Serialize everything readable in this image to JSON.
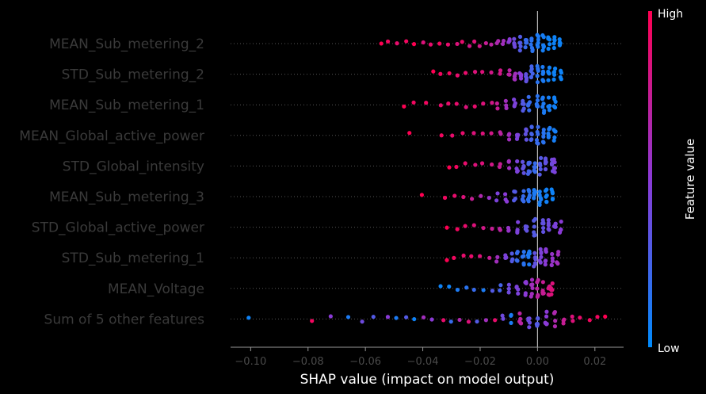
{
  "chart_data": {
    "type": "scatter",
    "subtype": "shap-beeswarm",
    "title": "",
    "xlabel": "SHAP value (impact on model output)",
    "xlim": [
      -0.107,
      0.03
    ],
    "xticks": [
      -0.1,
      -0.08,
      -0.06,
      -0.04,
      -0.02,
      0.0,
      0.02
    ],
    "xtick_labels": [
      "−0.10",
      "−0.08",
      "−0.06",
      "−0.04",
      "−0.02",
      "0.00",
      "0.02"
    ],
    "zero_line": 0.0,
    "grid": false,
    "colorbar": {
      "title": "Feature value",
      "high_label": "High",
      "low_label": "Low",
      "high_color": "#ff0052",
      "low_color": "#008bfb"
    },
    "features": [
      {
        "name": "MEAN_Sub_metering_2",
        "points": [
          [
            -0.0545,
            1.0
          ],
          [
            -0.052,
            0.95
          ],
          [
            -0.049,
            0.9
          ],
          [
            -0.046,
            0.95
          ],
          [
            -0.043,
            1.0
          ],
          [
            -0.04,
            0.85
          ],
          [
            -0.037,
            0.9
          ],
          [
            -0.034,
            0.95
          ],
          [
            -0.031,
            0.9
          ],
          [
            -0.028,
            0.85
          ],
          [
            -0.026,
            0.9
          ],
          [
            -0.024,
            0.8
          ],
          [
            -0.022,
            0.85
          ],
          [
            -0.02,
            0.8
          ],
          [
            -0.018,
            0.75
          ],
          [
            -0.016,
            0.7
          ],
          [
            -0.014,
            0.65
          ],
          [
            -0.012,
            0.6
          ],
          [
            -0.01,
            0.5
          ],
          [
            -0.008,
            0.4
          ],
          [
            -0.006,
            0.3
          ],
          [
            -0.004,
            0.2
          ],
          [
            -0.002,
            0.15
          ],
          [
            0.0,
            0.1
          ],
          [
            0.002,
            0.08
          ],
          [
            0.004,
            0.05
          ],
          [
            0.006,
            0.05
          ],
          [
            0.008,
            0.05
          ]
        ]
      },
      {
        "name": "STD_Sub_metering_2",
        "points": [
          [
            -0.0365,
            1.0
          ],
          [
            -0.034,
            0.95
          ],
          [
            -0.031,
            0.95
          ],
          [
            -0.028,
            0.9
          ],
          [
            -0.025,
            0.9
          ],
          [
            -0.022,
            0.85
          ],
          [
            -0.019,
            0.85
          ],
          [
            -0.016,
            0.8
          ],
          [
            -0.013,
            0.8
          ],
          [
            -0.01,
            0.7
          ],
          [
            -0.008,
            0.6
          ],
          [
            -0.006,
            0.5
          ],
          [
            -0.004,
            0.35
          ],
          [
            -0.002,
            0.25
          ],
          [
            0.0,
            0.15
          ],
          [
            0.002,
            0.1
          ],
          [
            0.004,
            0.06
          ],
          [
            0.006,
            0.05
          ],
          [
            0.008,
            0.05
          ]
        ]
      },
      {
        "name": "MEAN_Sub_metering_1",
        "points": [
          [
            -0.0465,
            1.0
          ],
          [
            -0.043,
            0.95
          ],
          [
            -0.039,
            0.95
          ],
          [
            -0.034,
            0.9
          ],
          [
            -0.031,
            0.9
          ],
          [
            -0.028,
            0.9
          ],
          [
            -0.025,
            0.85
          ],
          [
            -0.022,
            0.9
          ],
          [
            -0.019,
            0.85
          ],
          [
            -0.016,
            0.8
          ],
          [
            -0.014,
            0.75
          ],
          [
            -0.011,
            0.6
          ],
          [
            -0.008,
            0.45
          ],
          [
            -0.005,
            0.3
          ],
          [
            -0.003,
            0.2
          ],
          [
            0.0,
            0.15
          ],
          [
            0.002,
            0.1
          ],
          [
            0.004,
            0.08
          ],
          [
            0.006,
            0.06
          ]
        ]
      },
      {
        "name": "MEAN_Global_active_power",
        "points": [
          [
            -0.0445,
            1.0
          ],
          [
            -0.0335,
            0.95
          ],
          [
            -0.03,
            0.9
          ],
          [
            -0.026,
            0.9
          ],
          [
            -0.022,
            0.85
          ],
          [
            -0.019,
            0.85
          ],
          [
            -0.016,
            0.8
          ],
          [
            -0.013,
            0.7
          ],
          [
            -0.01,
            0.6
          ],
          [
            -0.007,
            0.45
          ],
          [
            -0.004,
            0.35
          ],
          [
            -0.002,
            0.25
          ],
          [
            0.0,
            0.2
          ],
          [
            0.002,
            0.15
          ],
          [
            0.004,
            0.1
          ],
          [
            0.006,
            0.08
          ]
        ]
      },
      {
        "name": "STD_Global_intensity",
        "points": [
          [
            -0.031,
            1.0
          ],
          [
            -0.028,
            0.95
          ],
          [
            -0.025,
            0.9
          ],
          [
            -0.022,
            0.85
          ],
          [
            -0.019,
            0.85
          ],
          [
            -0.016,
            0.8
          ],
          [
            -0.013,
            0.75
          ],
          [
            -0.01,
            0.6
          ],
          [
            -0.007,
            0.45
          ],
          [
            -0.005,
            0.35
          ],
          [
            -0.003,
            0.25
          ],
          [
            -0.001,
            0.2
          ],
          [
            0.001,
            0.3
          ],
          [
            0.003,
            0.35
          ],
          [
            0.005,
            0.4
          ],
          [
            0.006,
            0.45
          ]
        ]
      },
      {
        "name": "MEAN_Sub_metering_3",
        "points": [
          [
            -0.0405,
            1.0
          ],
          [
            -0.0325,
            0.95
          ],
          [
            -0.029,
            0.9
          ],
          [
            -0.026,
            0.85
          ],
          [
            -0.023,
            0.75
          ],
          [
            -0.02,
            0.65
          ],
          [
            -0.017,
            0.55
          ],
          [
            -0.014,
            0.45
          ],
          [
            -0.011,
            0.5
          ],
          [
            -0.008,
            0.3
          ],
          [
            -0.005,
            0.2
          ],
          [
            -0.003,
            0.15
          ],
          [
            -0.001,
            0.1
          ],
          [
            0.001,
            0.08
          ],
          [
            0.003,
            0.06
          ],
          [
            0.005,
            0.05
          ]
        ]
      },
      {
        "name": "STD_Global_active_power",
        "points": [
          [
            -0.0315,
            1.0
          ],
          [
            -0.028,
            0.95
          ],
          [
            -0.025,
            0.9
          ],
          [
            -0.022,
            0.85
          ],
          [
            -0.019,
            0.8
          ],
          [
            -0.016,
            0.75
          ],
          [
            -0.013,
            0.7
          ],
          [
            -0.01,
            0.55
          ],
          [
            -0.007,
            0.45
          ],
          [
            -0.004,
            0.35
          ],
          [
            -0.001,
            0.3
          ],
          [
            0.002,
            0.35
          ],
          [
            0.004,
            0.4
          ],
          [
            0.006,
            0.45
          ],
          [
            0.008,
            0.5
          ]
        ]
      },
      {
        "name": "STD_Sub_metering_1",
        "points": [
          [
            -0.0315,
            1.0
          ],
          [
            -0.029,
            0.95
          ],
          [
            -0.026,
            0.9
          ],
          [
            -0.023,
            0.9
          ],
          [
            -0.02,
            0.85
          ],
          [
            -0.017,
            0.75
          ],
          [
            -0.014,
            0.6
          ],
          [
            -0.011,
            0.45
          ],
          [
            -0.009,
            0.3
          ],
          [
            -0.007,
            0.2
          ],
          [
            -0.005,
            0.15
          ],
          [
            -0.003,
            0.1
          ],
          [
            -0.001,
            0.35
          ],
          [
            0.001,
            0.45
          ],
          [
            0.003,
            0.5
          ],
          [
            0.005,
            0.55
          ],
          [
            0.007,
            0.6
          ]
        ]
      },
      {
        "name": "MEAN_Voltage",
        "points": [
          [
            -0.0335,
            0.05
          ],
          [
            -0.031,
            0.05
          ],
          [
            -0.028,
            0.1
          ],
          [
            -0.025,
            0.15
          ],
          [
            -0.022,
            0.2
          ],
          [
            -0.019,
            0.1
          ],
          [
            -0.016,
            0.3
          ],
          [
            -0.013,
            0.25
          ],
          [
            -0.01,
            0.4
          ],
          [
            -0.007,
            0.45
          ],
          [
            -0.004,
            0.5
          ],
          [
            -0.002,
            0.6
          ],
          [
            0.0,
            0.7
          ],
          [
            0.002,
            0.75
          ],
          [
            0.004,
            0.8
          ],
          [
            0.005,
            0.85
          ]
        ]
      },
      {
        "name": "Sum of 5 other features",
        "points": [
          [
            -0.1005,
            0.05
          ],
          [
            -0.0785,
            0.95
          ],
          [
            -0.072,
            0.5
          ],
          [
            -0.066,
            0.1
          ],
          [
            -0.061,
            0.4
          ],
          [
            -0.057,
            0.3
          ],
          [
            -0.052,
            0.5
          ],
          [
            -0.049,
            0.1
          ],
          [
            -0.046,
            0.3
          ],
          [
            -0.043,
            0.05
          ],
          [
            -0.04,
            0.6
          ],
          [
            -0.037,
            0.5
          ],
          [
            -0.033,
            0.9
          ],
          [
            -0.03,
            0.2
          ],
          [
            -0.027,
            0.65
          ],
          [
            -0.024,
            0.85
          ],
          [
            -0.021,
            0.3
          ],
          [
            -0.018,
            0.6
          ],
          [
            -0.015,
            0.9
          ],
          [
            -0.012,
            0.4
          ],
          [
            -0.009,
            0.1
          ],
          [
            -0.006,
            0.7
          ],
          [
            -0.003,
            0.4
          ],
          [
            0.0,
            0.3
          ],
          [
            0.003,
            0.5
          ],
          [
            0.006,
            0.65
          ],
          [
            0.009,
            0.75
          ],
          [
            0.012,
            0.85
          ],
          [
            0.015,
            0.9
          ],
          [
            0.018,
            0.95
          ],
          [
            0.021,
            0.95
          ],
          [
            0.0235,
            1.0
          ]
        ]
      }
    ]
  }
}
